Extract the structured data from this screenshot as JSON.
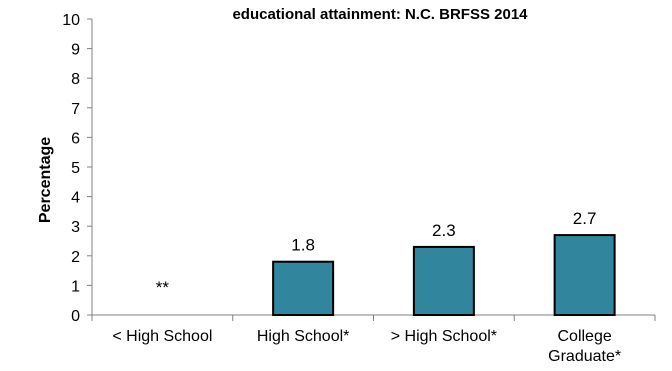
{
  "chart_data": {
    "type": "bar",
    "title": "educational attainment: N.C. BRFSS 2014",
    "xlabel": "",
    "ylabel": "Percentage",
    "ylim": [
      0,
      10
    ],
    "yticks": [
      0,
      1,
      2,
      3,
      4,
      5,
      6,
      7,
      8,
      9,
      10
    ],
    "grid": false,
    "legend": "none",
    "bar_color": "#31859C",
    "categories": [
      [
        "< High School"
      ],
      [
        "High School*"
      ],
      [
        "> High School*"
      ],
      [
        "College",
        "Graduate*"
      ]
    ],
    "values": [
      null,
      1.8,
      2.3,
      2.7
    ],
    "data_labels": [
      "**",
      "1.8",
      "2.3",
      "2.7"
    ]
  }
}
